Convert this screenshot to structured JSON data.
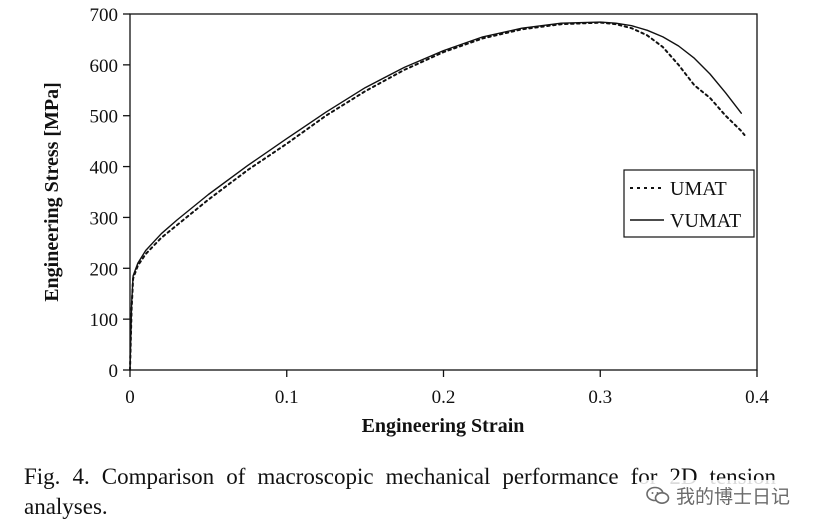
{
  "chart_data": {
    "type": "line",
    "xlabel": "Engineering Strain",
    "ylabel": "Engineering Stress [MPa]",
    "xlim": [
      0,
      0.4
    ],
    "ylim": [
      0,
      700
    ],
    "xticks": [
      "0",
      "0.1",
      "0.2",
      "0.3",
      "0.4"
    ],
    "yticks": [
      "0",
      "100",
      "200",
      "300",
      "400",
      "500",
      "600",
      "700"
    ],
    "grid": false,
    "legend_position": "right",
    "series": [
      {
        "name": "UMAT",
        "style": "dotted",
        "x": [
          0,
          0.001,
          0.002,
          0.005,
          0.01,
          0.02,
          0.03,
          0.05,
          0.075,
          0.1,
          0.125,
          0.15,
          0.175,
          0.2,
          0.225,
          0.25,
          0.275,
          0.3,
          0.31,
          0.32,
          0.33,
          0.34,
          0.35,
          0.36,
          0.37,
          0.38,
          0.39,
          0.392
        ],
        "y": [
          0,
          120,
          180,
          205,
          228,
          260,
          285,
          335,
          393,
          445,
          500,
          548,
          590,
          625,
          652,
          670,
          680,
          683,
          680,
          672,
          658,
          635,
          600,
          560,
          535,
          500,
          470,
          462
        ]
      },
      {
        "name": "VUMAT",
        "style": "solid",
        "x": [
          0,
          0.001,
          0.002,
          0.005,
          0.01,
          0.02,
          0.03,
          0.05,
          0.075,
          0.1,
          0.125,
          0.15,
          0.175,
          0.2,
          0.225,
          0.25,
          0.275,
          0.3,
          0.31,
          0.32,
          0.33,
          0.34,
          0.35,
          0.36,
          0.37,
          0.38,
          0.39
        ],
        "y": [
          0,
          130,
          185,
          210,
          235,
          268,
          295,
          345,
          402,
          455,
          507,
          555,
          595,
          628,
          655,
          672,
          682,
          684,
          682,
          677,
          668,
          655,
          637,
          613,
          582,
          545,
          505
        ]
      }
    ]
  },
  "caption": "Fig. 4. Comparison of macroscopic mechanical performance for 2D tension analyses.",
  "watermark": {
    "text": "我的博士日记",
    "icon": "wechat-icon"
  },
  "colors": {
    "line": "#111111",
    "background": "#ffffff"
  }
}
